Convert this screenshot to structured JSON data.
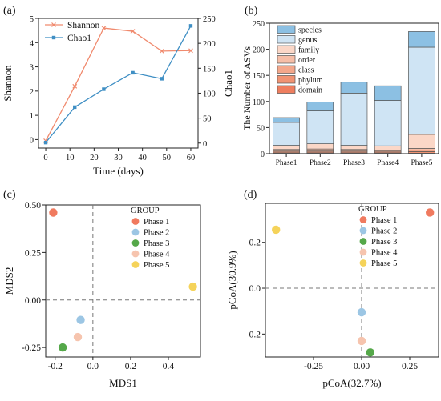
{
  "panels": [
    {
      "id": "a",
      "tag": "(a)",
      "chart_data": {
        "type": "line",
        "x": [
          0,
          12,
          24,
          36,
          48,
          60
        ],
        "xlabel": "Time (days)",
        "xlim": [
          -3,
          63
        ],
        "xticks": [
          0,
          10,
          20,
          30,
          40,
          50,
          60
        ],
        "ylabel": "Shannon",
        "ylim": [
          -0.35,
          5
        ],
        "yticks": [
          0,
          1,
          2,
          3,
          4,
          5
        ],
        "y2label": "Chao1",
        "y2lim": [
          -10,
          250
        ],
        "y2ticks": [
          0,
          50,
          100,
          150,
          200,
          250
        ],
        "legend": "top-left",
        "series": [
          {
            "name": "Shannon",
            "axis": "left",
            "marker": "x",
            "color": "#f08a6e",
            "values": [
              -0.05,
              2.2,
              4.6,
              4.47,
              3.65,
              3.67
            ]
          },
          {
            "name": "Chao1",
            "axis": "right",
            "marker": "square",
            "color": "#3f8fc4",
            "values": [
              1,
              72,
              108,
              141,
              129,
              235
            ]
          }
        ]
      }
    },
    {
      "id": "b",
      "tag": "(b)",
      "chart_data": {
        "type": "bar",
        "stacked": true,
        "categories": [
          "Phase1",
          "Phase2",
          "Phase3",
          "Phase4",
          "Phase5"
        ],
        "ylabel": "The Number of ASVs",
        "ylim": [
          0,
          250
        ],
        "yticks": [
          0,
          50,
          100,
          150,
          200,
          250
        ],
        "legend": "top-left",
        "series": [
          {
            "name": "domain",
            "color": "#ee7e5f",
            "values": [
              1,
              1,
              1,
              1,
              1
            ]
          },
          {
            "name": "phylum",
            "color": "#f09373",
            "values": [
              2,
              2,
              2,
              2,
              3
            ]
          },
          {
            "name": "class",
            "color": "#f3a78b",
            "values": [
              2,
              2,
              2,
              2,
              3
            ]
          },
          {
            "name": "order",
            "color": "#f6bea7",
            "values": [
              3,
              4,
              3,
              2,
              3
            ]
          },
          {
            "name": "family",
            "color": "#fbd7c7",
            "values": [
              8,
              10,
              8,
              8,
              27
            ]
          },
          {
            "name": "genus",
            "color": "#cfe4f4",
            "values": [
              44,
              63,
              100,
              87,
              167
            ]
          },
          {
            "name": "species",
            "color": "#8cc0e3",
            "values": [
              9,
              17,
              21,
              28,
              30
            ]
          }
        ]
      }
    },
    {
      "id": "c",
      "tag": "(c)",
      "chart_data": {
        "type": "scatter",
        "xlabel": "MDS1",
        "ylabel": "MDS2",
        "xlim": [
          -0.25,
          0.57
        ],
        "ylim": [
          -0.3,
          0.5
        ],
        "xticks": [
          -0.2,
          0.0,
          0.2,
          0.4
        ],
        "yticks": [
          -0.25,
          0.0,
          0.25,
          0.5
        ],
        "legend_title": "GROUP",
        "legend": "top-center",
        "series": [
          {
            "name": "Phase 1",
            "color": "#f07a5f",
            "x": -0.21,
            "y": 0.46
          },
          {
            "name": "Phase 2",
            "color": "#9cc6e4",
            "x": -0.065,
            "y": -0.105
          },
          {
            "name": "Phase 3",
            "color": "#55a84a",
            "x": -0.16,
            "y": -0.25
          },
          {
            "name": "Phase 4",
            "color": "#f6c4ae",
            "x": -0.08,
            "y": -0.195
          },
          {
            "name": "Phase 5",
            "color": "#f5d35a",
            "x": 0.53,
            "y": 0.07
          }
        ]
      }
    },
    {
      "id": "d",
      "tag": "(d)",
      "chart_data": {
        "type": "scatter",
        "xlabel": "pCoA(32.7%)",
        "ylabel": "pCoA(30.9%)",
        "xlim": [
          -0.5,
          0.4
        ],
        "ylim": [
          -0.3,
          0.37
        ],
        "xticks": [
          -0.25,
          0.0,
          0.25
        ],
        "yticks": [
          -0.2,
          0.0,
          0.2
        ],
        "legend_title": "GROUP",
        "legend": "top-center",
        "series": [
          {
            "name": "Phase 1",
            "color": "#f07a5f",
            "x": 0.355,
            "y": 0.33
          },
          {
            "name": "Phase 2",
            "color": "#9cc6e4",
            "x": 0.0,
            "y": -0.105
          },
          {
            "name": "Phase 3",
            "color": "#55a84a",
            "x": 0.045,
            "y": -0.28
          },
          {
            "name": "Phase 4",
            "color": "#f6c4ae",
            "x": 0.0,
            "y": -0.23
          },
          {
            "name": "Phase 5",
            "color": "#f5d35a",
            "x": -0.445,
            "y": 0.255
          }
        ]
      }
    }
  ]
}
